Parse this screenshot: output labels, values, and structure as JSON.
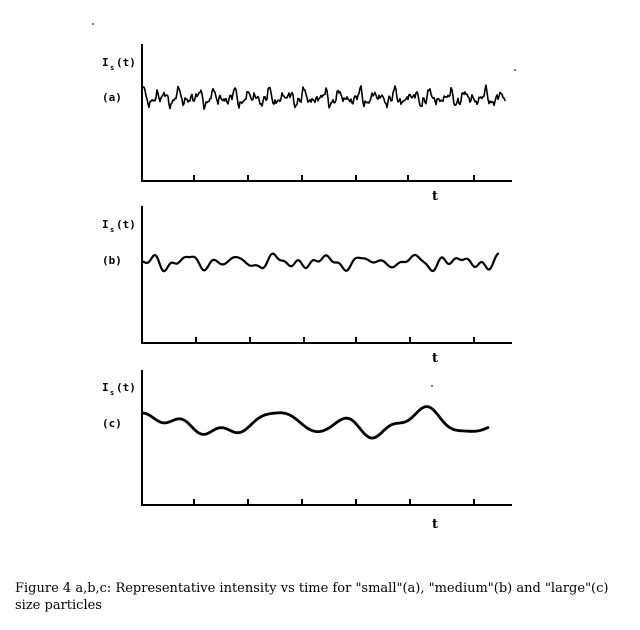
{
  "chart_data": [
    {
      "type": "line",
      "panel_label": "(a)",
      "ylabel": "I_s(t)",
      "ylabel_main": "I",
      "ylabel_sub": "s",
      "ylabel_rest": "(t)",
      "xlabel": "t",
      "seed": 11,
      "amplitude": 0.8,
      "harmonics": [
        [
          1.0,
          0.35
        ],
        [
          0.7,
          0.55
        ],
        [
          0.5,
          0.9
        ],
        [
          0.35,
          1.3
        ]
      ],
      "x_range": [
        0,
        1
      ],
      "ylim": [
        -2,
        2
      ]
    },
    {
      "type": "line",
      "panel_label": "(b)",
      "ylabel": "I_s(t)",
      "ylabel_main": "I",
      "ylabel_sub": "s",
      "ylabel_rest": "(t)",
      "xlabel": "t",
      "seed": 29,
      "amplitude": 0.75,
      "harmonics": [
        [
          1.0,
          0.14
        ],
        [
          0.6,
          0.22
        ],
        [
          0.35,
          0.32
        ]
      ],
      "x_range": [
        0,
        1
      ],
      "ylim": [
        -2,
        2
      ]
    },
    {
      "type": "line",
      "panel_label": "(c)",
      "ylabel": "I_s(t)",
      "ylabel_main": "I",
      "ylabel_sub": "s",
      "ylabel_rest": "(t)",
      "xlabel": "t",
      "seed": 5,
      "amplitude": 0.9,
      "harmonics": [
        [
          1.0,
          0.045
        ],
        [
          0.6,
          0.075
        ],
        [
          0.3,
          0.12
        ]
      ],
      "x_range": [
        0,
        1
      ],
      "ylim": [
        -2,
        2
      ]
    }
  ],
  "caption": "Figure 4 a,b,c: Representative intensity vs time for \"small\"(a), \"medium\"(b) and \"large\"(c) size particles"
}
